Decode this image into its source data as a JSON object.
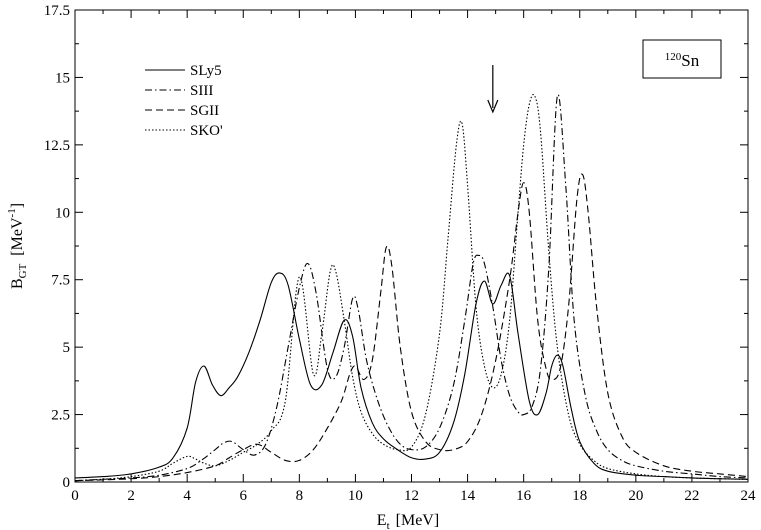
{
  "chart_data": {
    "type": "line",
    "title": "",
    "xlabel": {
      "main": "E",
      "sub": "t",
      "unit": "[MeV]"
    },
    "ylabel": {
      "main": "B",
      "sub": "GT",
      "unit_pre": "[MeV",
      "unit_sup": "-1",
      "unit_post": "]"
    },
    "xlim": [
      0,
      24
    ],
    "ylim": [
      0,
      17.5
    ],
    "xticks": [
      0,
      2,
      4,
      6,
      8,
      10,
      12,
      14,
      16,
      18,
      20,
      22,
      24
    ],
    "xtick_labels": [
      "0",
      "2",
      "4",
      "6",
      "8",
      "10",
      "12",
      "14",
      "16",
      "18",
      "20",
      "22",
      "24"
    ],
    "yticks": [
      0,
      2.5,
      5,
      7.5,
      10,
      12.5,
      15,
      17.5
    ],
    "ytick_labels": [
      "0",
      "2.5",
      "5",
      "7.5",
      "10",
      "12.5",
      "15",
      "17.5"
    ],
    "grid": false,
    "legend_position": "top-left",
    "annotation": {
      "mass_number": "120",
      "element": "Sn",
      "arrow_at_x": 14.9
    },
    "series": [
      {
        "name": "SLy5",
        "style": "solid",
        "x": [
          0,
          1,
          2,
          3,
          3.5,
          4.0,
          4.3,
          4.6,
          4.9,
          5.2,
          5.5,
          5.8,
          6.2,
          6.6,
          7.0,
          7.3,
          7.6,
          8.0,
          8.4,
          8.8,
          9.2,
          9.6,
          9.9,
          10.2,
          10.6,
          11.0,
          11.5,
          12.0,
          12.5,
          13.0,
          13.5,
          13.9,
          14.3,
          14.6,
          14.9,
          15.2,
          15.5,
          15.8,
          16.2,
          16.5,
          16.8,
          17.0,
          17.2,
          17.4,
          17.7,
          18.0,
          18.5,
          19.0,
          20,
          21,
          22,
          23,
          24
        ],
        "y": [
          0.15,
          0.2,
          0.3,
          0.55,
          0.9,
          2.0,
          3.7,
          4.3,
          3.6,
          3.2,
          3.5,
          3.9,
          4.8,
          6.0,
          7.4,
          7.75,
          7.3,
          5.3,
          3.6,
          3.6,
          4.8,
          6.0,
          5.4,
          3.5,
          2.2,
          1.6,
          1.2,
          0.9,
          0.85,
          1.1,
          2.2,
          4.0,
          6.6,
          7.45,
          6.6,
          7.3,
          7.65,
          5.5,
          3.0,
          2.5,
          3.3,
          4.3,
          4.7,
          4.3,
          2.7,
          1.5,
          0.7,
          0.4,
          0.25,
          0.2,
          0.15,
          0.12,
          0.1
        ]
      },
      {
        "name": "SIII",
        "style": "dashdot",
        "x": [
          0,
          1,
          2,
          3,
          4.0,
          4.5,
          5.0,
          5.3,
          5.6,
          6.0,
          6.4,
          6.8,
          7.2,
          7.6,
          8.0,
          8.3,
          8.6,
          9.0,
          9.3,
          9.6,
          9.9,
          10.1,
          10.4,
          10.8,
          11.2,
          11.6,
          12.0,
          12.5,
          13.0,
          13.5,
          13.9,
          14.2,
          14.4,
          14.6,
          14.9,
          15.2,
          15.5,
          15.8,
          16.0,
          16.3,
          16.6,
          16.9,
          17.2,
          17.5,
          17.8,
          18.2,
          18.6,
          19.0,
          19.5,
          20,
          21,
          22,
          23,
          24
        ],
        "y": [
          0.05,
          0.1,
          0.15,
          0.25,
          0.5,
          0.8,
          1.2,
          1.45,
          1.5,
          1.2,
          1.0,
          1.4,
          2.8,
          5.0,
          7.2,
          8.1,
          7.0,
          4.2,
          3.9,
          5.0,
          6.8,
          6.4,
          4.5,
          3.0,
          2.0,
          1.4,
          1.2,
          1.3,
          2.0,
          3.6,
          6.0,
          8.1,
          8.4,
          8.1,
          6.5,
          4.5,
          3.2,
          2.6,
          2.5,
          2.8,
          4.2,
          8.0,
          14.3,
          11.0,
          6.0,
          3.2,
          1.9,
          1.2,
          0.8,
          0.6,
          0.4,
          0.3,
          0.2,
          0.15
        ]
      },
      {
        "name": "SGII",
        "style": "dashed",
        "x": [
          0,
          1,
          2,
          3,
          4,
          5,
          5.5,
          6.0,
          6.5,
          7.0,
          7.5,
          8.0,
          8.5,
          9.0,
          9.5,
          9.8,
          10.0,
          10.3,
          10.6,
          10.9,
          11.1,
          11.3,
          11.6,
          12.0,
          12.5,
          13.0,
          13.5,
          14.0,
          14.5,
          15.0,
          15.5,
          15.8,
          16.0,
          16.2,
          16.5,
          16.8,
          17.0,
          17.3,
          17.6,
          17.9,
          18.1,
          18.3,
          18.6,
          19.0,
          19.5,
          20,
          21,
          22,
          23,
          24
        ],
        "y": [
          0.05,
          0.08,
          0.12,
          0.2,
          0.35,
          0.6,
          0.9,
          1.2,
          1.4,
          1.1,
          0.8,
          0.8,
          1.2,
          2.0,
          3.0,
          4.0,
          4.3,
          3.8,
          4.5,
          7.0,
          8.7,
          8.0,
          5.0,
          2.6,
          1.5,
          1.2,
          1.2,
          1.5,
          2.5,
          4.5,
          7.5,
          10.0,
          11.1,
          10.0,
          6.0,
          4.2,
          3.8,
          4.2,
          6.5,
          10.5,
          11.4,
          10.0,
          6.5,
          3.3,
          1.7,
          1.1,
          0.6,
          0.4,
          0.3,
          0.2
        ]
      },
      {
        "name": "SKO'",
        "style": "dotted",
        "x": [
          0,
          1,
          2,
          3,
          3.5,
          4.0,
          4.3,
          4.6,
          5.0,
          5.5,
          6.0,
          6.5,
          7.0,
          7.5,
          8.0,
          8.5,
          8.8,
          9.1,
          9.3,
          9.6,
          9.9,
          10.2,
          10.6,
          11.0,
          11.5,
          12.0,
          12.5,
          13.0,
          13.3,
          13.6,
          13.8,
          14.0,
          14.3,
          14.6,
          14.9,
          15.2,
          15.5,
          15.8,
          16.0,
          16.2,
          16.4,
          16.6,
          16.9,
          17.2,
          17.6,
          18.0,
          18.5,
          19.0,
          20,
          21,
          22,
          23,
          24
        ],
        "y": [
          0.05,
          0.1,
          0.2,
          0.4,
          0.7,
          0.95,
          0.85,
          0.7,
          0.6,
          0.8,
          1.1,
          1.4,
          1.9,
          3.0,
          7.6,
          4.0,
          5.5,
          7.8,
          7.8,
          6.0,
          3.9,
          2.6,
          1.8,
          1.4,
          1.2,
          1.3,
          2.5,
          5.5,
          9.0,
          12.5,
          13.3,
          11.0,
          6.5,
          4.3,
          3.5,
          4.0,
          6.0,
          10.0,
          12.5,
          14.0,
          14.3,
          13.0,
          8.5,
          5.0,
          2.5,
          1.4,
          0.8,
          0.5,
          0.3,
          0.2,
          0.15,
          0.12,
          0.1
        ]
      }
    ]
  }
}
